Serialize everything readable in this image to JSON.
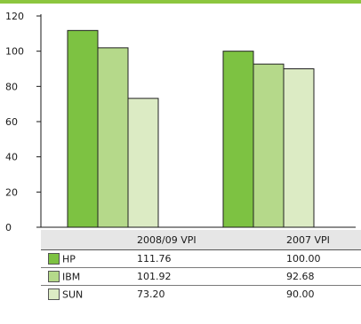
{
  "chart_data": {
    "type": "bar",
    "categories": [
      "2008/09 VPI",
      "2007 VPI"
    ],
    "series": [
      {
        "name": "HP",
        "values": [
          111.76,
          100.0
        ],
        "labels": [
          "111.76",
          "100.00"
        ],
        "color": "#7dc242"
      },
      {
        "name": "IBM",
        "values": [
          101.92,
          92.68
        ],
        "labels": [
          "101.92",
          "92.68"
        ],
        "color": "#b5d98a"
      },
      {
        "name": "SUN",
        "values": [
          73.2,
          90.0
        ],
        "labels": [
          "73.20",
          "90.00"
        ],
        "color": "#dcebc4"
      }
    ],
    "ylim": [
      0,
      120
    ],
    "yticks": [
      0,
      20,
      40,
      60,
      80,
      100,
      120
    ],
    "grid": false,
    "legend": "data-table"
  },
  "colors": {
    "accent": "#8cc63f",
    "table_header": "#e6e6e6"
  }
}
